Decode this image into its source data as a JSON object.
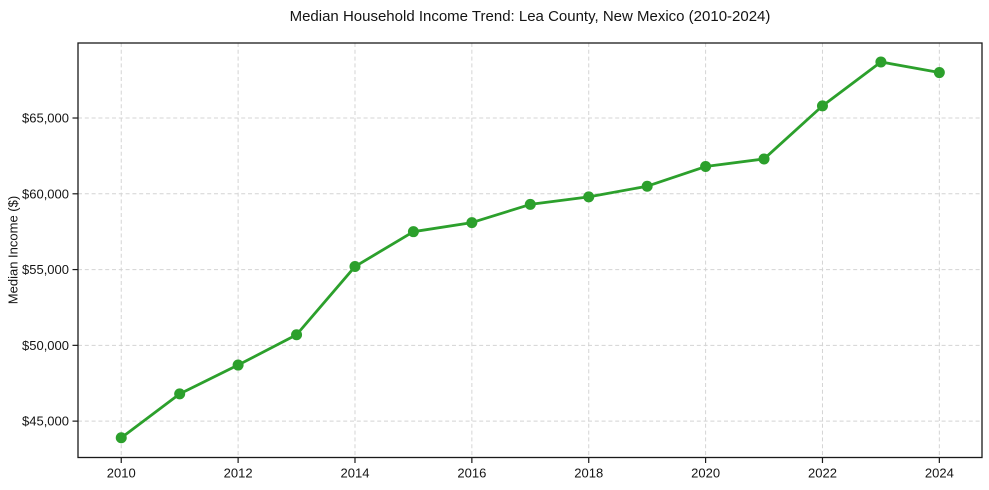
{
  "chart_data": {
    "type": "line",
    "title": "Median Household Income Trend: Lea County, New Mexico (2010-2024)",
    "xlabel": "",
    "ylabel": "Median Income ($)",
    "x": [
      2010,
      2011,
      2012,
      2013,
      2014,
      2015,
      2016,
      2017,
      2018,
      2019,
      2020,
      2021,
      2022,
      2023,
      2024
    ],
    "series": [
      {
        "name": "Median Household Income",
        "values": [
          43900,
          46800,
          48700,
          50700,
          55200,
          57500,
          58100,
          59300,
          59800,
          60500,
          61800,
          62300,
          65800,
          68700,
          68000
        ]
      }
    ],
    "x_ticks": [
      2010,
      2012,
      2014,
      2016,
      2018,
      2020,
      2022,
      2024
    ],
    "x_tick_labels": [
      "2010",
      "2012",
      "2014",
      "2016",
      "2018",
      "2020",
      "2022",
      "2024"
    ],
    "y_ticks": [
      45000,
      50000,
      55000,
      60000,
      65000
    ],
    "y_tick_labels": [
      "$45,000",
      "$50,000",
      "$55,000",
      "$60,000",
      "$65,000"
    ],
    "xlim": [
      2009.26,
      2024.73
    ],
    "ylim": [
      42600,
      69950
    ],
    "grid": true,
    "grid_style": "dashed",
    "legend_position": "none",
    "marker": "circle",
    "line_color": "#2ca02c",
    "grid_color": "#d4d4d4",
    "axis_color": "#1a1a1a",
    "text_color": "#141414",
    "background_color": "#ffffff"
  }
}
